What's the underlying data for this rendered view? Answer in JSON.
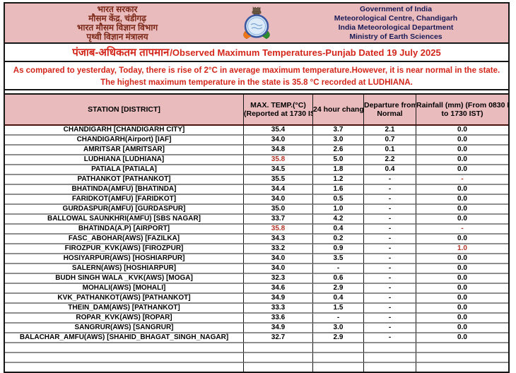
{
  "letterhead": {
    "org_hindi": [
      "भारत सरकार",
      "मौसम केंद्र, चंडीगढ़",
      "भारत मौसम विज्ञान विभाग",
      "पृथ्वी विज्ञान मंत्रालय"
    ],
    "org_english": [
      "Government of India",
      "Meteorological Centre, Chandigarh",
      "India Meteorological Department",
      "Ministry of Earth Sciences"
    ],
    "logo": "imd-emblem"
  },
  "title": {
    "hindi": "पंजाब-अधिकतम तापमान",
    "english": "/Observed Maximum Temperatures-Punjab Dated 19 July 2025"
  },
  "notice": {
    "line1": "As compared to yesterday, Today, there is rise of 2°C in average maximum temperature.However, it is near normal in the state.",
    "line2": "The highest maximum temperature in the state is 35.8 °C recorded at LUDHIANA."
  },
  "colors": {
    "header_pink": "#e9bbbd",
    "notice_red": "#d4261b",
    "hindi_maroon": "#7c2817",
    "english_navy": "#181a56",
    "highlight_red": "#b33225"
  },
  "table": {
    "header_keys": [
      "station",
      "max-temp",
      "change-24h",
      "departure",
      "rainfall"
    ],
    "header_lines": [
      [
        "STATION  [DISTRICT]"
      ],
      [
        "MAX. TEMP.(°C)",
        "(Reported at 1730 IST)"
      ],
      [
        "24 hour change"
      ],
      [
        "Departure from",
        "Normal"
      ],
      [
        "Rainfall (mm) (From 0830 IST",
        "to 1730 IST)"
      ]
    ],
    "rows": [
      {
        "cells": [
          "CHANDIGARH  [CHANDIGARH CITY]",
          "35.4",
          "3.7",
          "2.1",
          "0.0"
        ],
        "red": []
      },
      {
        "cells": [
          "CHANDIGARH(Airport)  [IAF]",
          "34.0",
          "3.0",
          "0.7",
          "0.0"
        ],
        "red": []
      },
      {
        "cells": [
          "AMRITSAR  [AMRITSAR]",
          "34.8",
          "2.6",
          "0.1",
          "0.0"
        ],
        "red": []
      },
      {
        "cells": [
          "LUDHIANA  [LUDHIANA]",
          "35.8",
          "5.0",
          "2.2",
          "0.0"
        ],
        "red": [
          1
        ]
      },
      {
        "cells": [
          "PATIALA  [PATIALA]",
          "34.5",
          "1.8",
          "0.4",
          "0.0"
        ],
        "red": []
      },
      {
        "cells": [
          "PATHANKOT  [PATHANKOT]",
          "35.5",
          "1.2",
          "-",
          "-"
        ],
        "red": [
          4
        ]
      },
      {
        "cells": [
          "BHATINDA(AMFU)  [BHATINDA]",
          "34.4",
          "1.6",
          "-",
          "0.0"
        ],
        "red": []
      },
      {
        "cells": [
          "FARIDKOT(AMFU)  [FARIDKOT]",
          "34.0",
          "0.5",
          "-",
          "0.0"
        ],
        "red": []
      },
      {
        "cells": [
          "GURDASPUR(AMFU)  [GURDASPUR]",
          "35.0",
          "1.0",
          "-",
          "0.0"
        ],
        "red": []
      },
      {
        "cells": [
          "BALLOWAL SAUNKHRI(AMFU)  [SBS NAGAR]",
          "33.7",
          "4.2",
          "-",
          "0.0"
        ],
        "red": []
      },
      {
        "cells": [
          "BHATINDA(A.P)  [AIRPORT]",
          "35.8",
          "0.4",
          "-",
          "-"
        ],
        "red": [
          1,
          4
        ]
      },
      {
        "cells": [
          "FASC_ABOHAR(AWS)  [FAZILKA]",
          "34.3",
          "0.2",
          "-",
          "0.0"
        ],
        "red": []
      },
      {
        "cells": [
          "FIROZPUR_KVK(AWS)  [FIROZPUR]",
          "33.2",
          "0.9",
          "-",
          "1.0"
        ],
        "red": [
          4
        ]
      },
      {
        "cells": [
          "HOSIYARPUR(AWS)  [HOSHIARPUR]",
          "34.0",
          "3.5",
          "-",
          "0.0"
        ],
        "red": []
      },
      {
        "cells": [
          "SALERN(AWS)  [HOSHIARPUR]",
          "34.0",
          "-",
          "-",
          "0.0"
        ],
        "red": []
      },
      {
        "cells": [
          "BUDH SINGH WALA _KVK(AWS)  [MOGA]",
          "32.3",
          "0.6",
          "-",
          "0.0"
        ],
        "red": []
      },
      {
        "cells": [
          "MOHALI(AWS)  [MOHALI]",
          "34.6",
          "2.9",
          "-",
          "0.0"
        ],
        "red": []
      },
      {
        "cells": [
          "KVK_PATHANKOT(AWS)  [PATHANKOT]",
          "34.9",
          "0.4",
          "-",
          "0.0"
        ],
        "red": []
      },
      {
        "cells": [
          "THEIN_DAM(AWS)  [PATHANKOT]",
          "33.3",
          "1.5",
          "-",
          "0.0"
        ],
        "red": []
      },
      {
        "cells": [
          "ROPAR_KVK(AWS)  [ROPAR]",
          "33.6",
          "-",
          "-",
          "0.0"
        ],
        "red": []
      },
      {
        "cells": [
          "SANGRUR(AWS)  [SANGRUR]",
          "34.9",
          "3.0",
          "-",
          "0.0"
        ],
        "red": []
      },
      {
        "cells": [
          "BALACHAR_AMFU(AWS) [SHAHID_BHAGAT_SINGH_NAGAR]",
          "32.7",
          "2.9",
          "-",
          "0.0"
        ],
        "red": []
      }
    ],
    "empty_row_count": 3
  }
}
